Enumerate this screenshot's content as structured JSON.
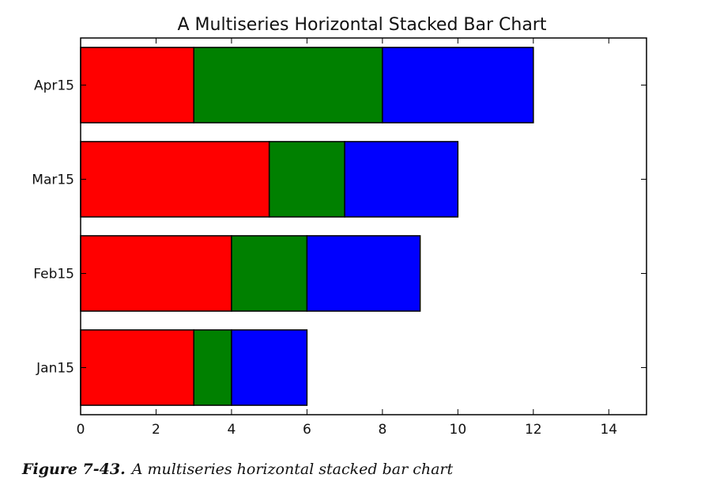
{
  "chart_data": {
    "type": "bar",
    "orientation": "horizontal",
    "stacked": true,
    "title": "A Multiseries Horizontal Stacked Bar Chart",
    "categories": [
      "Jan15",
      "Feb15",
      "Mar15",
      "Apr15"
    ],
    "series": [
      {
        "values": [
          3,
          4,
          5,
          3
        ],
        "color": "#ff0000"
      },
      {
        "values": [
          1,
          2,
          2,
          5
        ],
        "color": "#008000"
      },
      {
        "values": [
          2,
          3,
          3,
          4
        ],
        "color": "#0000ff"
      }
    ],
    "xlim": [
      0,
      15
    ],
    "xticks": [
      0,
      2,
      4,
      6,
      8,
      10,
      12,
      14
    ],
    "xtick_labels": [
      "0",
      "2",
      "4",
      "6",
      "8",
      "10",
      "12",
      "14"
    ],
    "xlabel": "",
    "ylabel": "",
    "grid": false
  },
  "caption": {
    "figure_number": "Figure 7-43.",
    "text": "A multiseries horizontal stacked bar chart"
  }
}
